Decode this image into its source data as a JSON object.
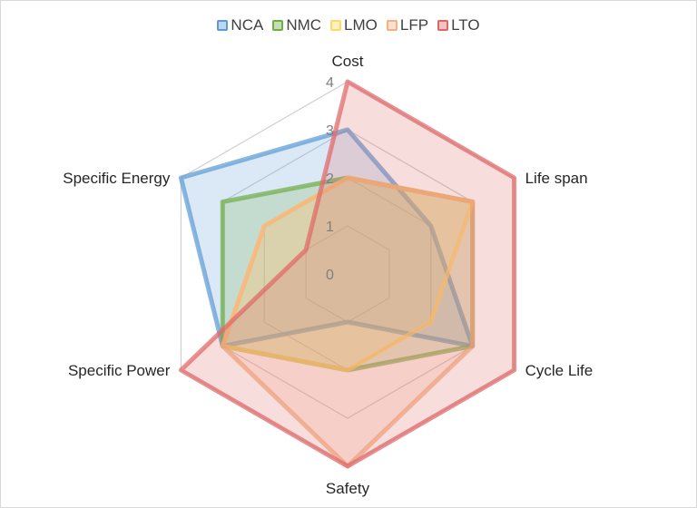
{
  "chart_data": {
    "type": "radar",
    "axes": [
      "Cost",
      "Life span",
      "Cycle Life",
      "Safety",
      "Specific Power",
      "Specific Energy"
    ],
    "rlim": [
      0,
      4
    ],
    "ticks": [
      "0",
      "1",
      "2",
      "3",
      "4"
    ],
    "gridlines": true,
    "legend_position": "top",
    "series": [
      {
        "name": "NCA",
        "color": "#5b9bd5",
        "values": [
          3,
          2,
          3,
          1,
          3,
          4
        ]
      },
      {
        "name": "NMC",
        "color": "#70ad47",
        "values": [
          2,
          3,
          3,
          2,
          3,
          3
        ]
      },
      {
        "name": "LMO",
        "color": "#ffd966",
        "values": [
          2,
          3,
          2,
          2,
          3,
          2
        ]
      },
      {
        "name": "LFP",
        "color": "#f4b183",
        "values": [
          2,
          3,
          3,
          4,
          3,
          2
        ]
      },
      {
        "name": "LTO",
        "color": "#e06666",
        "values": [
          4,
          4,
          4,
          4,
          4,
          1
        ]
      }
    ]
  }
}
